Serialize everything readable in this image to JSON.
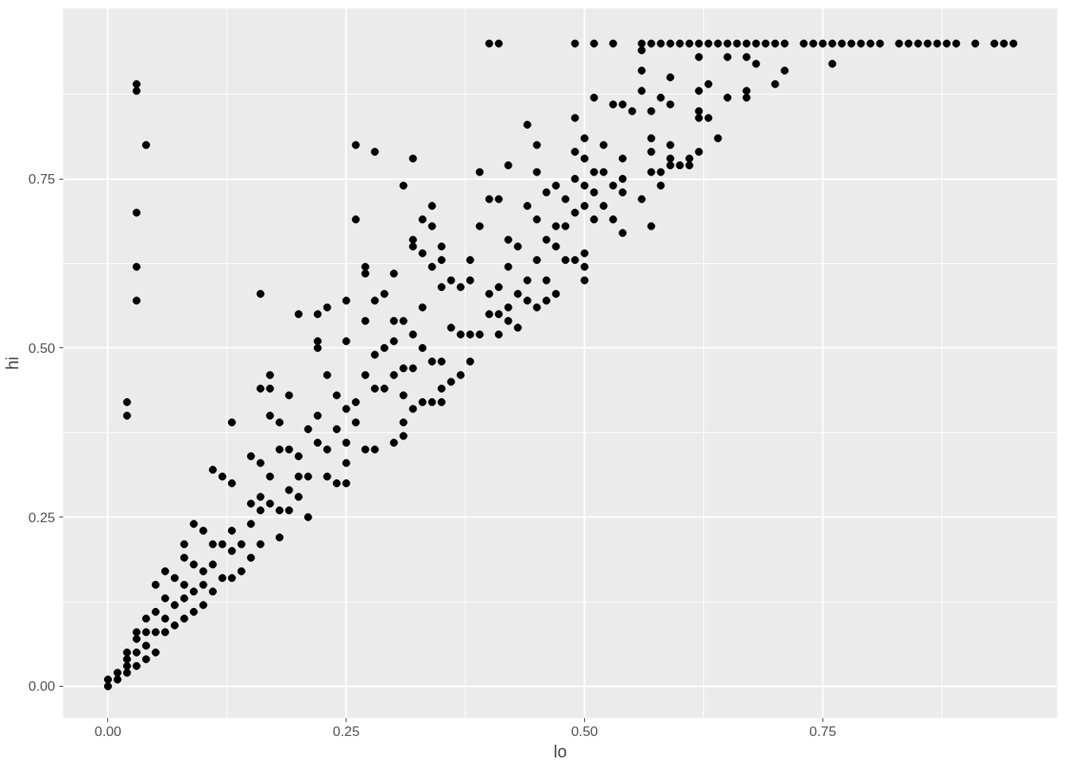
{
  "chart_data": {
    "type": "scatter",
    "xlabel": "lo",
    "ylabel": "hi",
    "xlim": [
      -0.047,
      0.996
    ],
    "ylim": [
      -0.047,
      1.002
    ],
    "xticks": [
      {
        "value": 0,
        "label": "0.00"
      },
      {
        "value": 0.25,
        "label": "0.25"
      },
      {
        "value": 0.5,
        "label": "0.50"
      },
      {
        "value": 0.75,
        "label": "0.75"
      }
    ],
    "yticks": [
      {
        "value": 0,
        "label": "0.00"
      },
      {
        "value": 0.25,
        "label": "0.25"
      },
      {
        "value": 0.5,
        "label": "0.50"
      },
      {
        "value": 0.75,
        "label": "0.75"
      }
    ],
    "grid": true,
    "marker": "circle",
    "series": [
      {
        "color": "#000000",
        "x": [
          0.03,
          0.03,
          0.04,
          0.03,
          0.03,
          0.03,
          0.02,
          0.02,
          0,
          0,
          0.01,
          0.01,
          0.02,
          0.02,
          0.02,
          0.02,
          0.03,
          0.03,
          0.03,
          0.03,
          0.04,
          0.04,
          0.04,
          0.04,
          0.05,
          0.05,
          0.05,
          0.05,
          0.06,
          0.06,
          0.06,
          0.06,
          0.07,
          0.07,
          0.07,
          0.08,
          0.08,
          0.08,
          0.08,
          0.08,
          0.09,
          0.09,
          0.09,
          0.09,
          0.1,
          0.1,
          0.1,
          0.1,
          0.11,
          0.11,
          0.11,
          0.11,
          0.12,
          0.12,
          0.12,
          0.13,
          0.13,
          0.13,
          0.13,
          0.13,
          0.14,
          0.14,
          0.15,
          0.15,
          0.15,
          0.15,
          0.16,
          0.16,
          0.16,
          0.16,
          0.16,
          0.16,
          0.17,
          0.17,
          0.17,
          0.17,
          0.17,
          0.18,
          0.18,
          0.18,
          0.18,
          0.19,
          0.19,
          0.19,
          0.19,
          0.2,
          0.2,
          0.2,
          0.2,
          0.21,
          0.21,
          0.21,
          0.22,
          0.22,
          0.22,
          0.22,
          0.22,
          0.23,
          0.23,
          0.23,
          0.23,
          0.24,
          0.24,
          0.24,
          0.25,
          0.25,
          0.25,
          0.25,
          0.25,
          0.25,
          0.26,
          0.26,
          0.26,
          0.26,
          0.27,
          0.27,
          0.27,
          0.27,
          0.27,
          0.28,
          0.28,
          0.28,
          0.28,
          0.28,
          0.29,
          0.29,
          0.29,
          0.3,
          0.3,
          0.3,
          0.3,
          0.3,
          0.31,
          0.31,
          0.31,
          0.31,
          0.31,
          0.31,
          0.32,
          0.32,
          0.32,
          0.32,
          0.32,
          0.32,
          0.33,
          0.33,
          0.33,
          0.33,
          0.33,
          0.34,
          0.34,
          0.34,
          0.34,
          0.34,
          0.35,
          0.35,
          0.35,
          0.35,
          0.35,
          0.35,
          0.36,
          0.36,
          0.36,
          0.37,
          0.37,
          0.37,
          0.38,
          0.38,
          0.38,
          0.38,
          0.39,
          0.39,
          0.39,
          0.4,
          0.4,
          0.4,
          0.4,
          0.41,
          0.41,
          0.41,
          0.41,
          0.41,
          0.42,
          0.42,
          0.42,
          0.42,
          0.42,
          0.43,
          0.43,
          0.43,
          0.44,
          0.44,
          0.44,
          0.44,
          0.45,
          0.45,
          0.45,
          0.45,
          0.45,
          0.46,
          0.46,
          0.46,
          0.46,
          0.47,
          0.47,
          0.47,
          0.47,
          0.48,
          0.48,
          0.48,
          0.49,
          0.49,
          0.49,
          0.49,
          0.49,
          0.49,
          0.5,
          0.5,
          0.5,
          0.5,
          0.5,
          0.5,
          0.5,
          0.51,
          0.51,
          0.51,
          0.51,
          0.51,
          0.52,
          0.52,
          0.52,
          0.53,
          0.53,
          0.53,
          0.53,
          0.54,
          0.54,
          0.54,
          0.54,
          0.54,
          0.55,
          0.56,
          0.56,
          0.56,
          0.56,
          0.56,
          0.57,
          0.57,
          0.57,
          0.57,
          0.57,
          0.57,
          0.58,
          0.58,
          0.58,
          0.58,
          0.59,
          0.59,
          0.59,
          0.59,
          0.59,
          0.59,
          0.6,
          0.6,
          0.61,
          0.61,
          0.61,
          0.62,
          0.62,
          0.62,
          0.62,
          0.62,
          0.62,
          0.63,
          0.63,
          0.63,
          0.64,
          0.64,
          0.65,
          0.65,
          0.65,
          0.66,
          0.67,
          0.67,
          0.67,
          0.67,
          0.68,
          0.68,
          0.69,
          0.7,
          0.7,
          0.71,
          0.71,
          0.73,
          0.74,
          0.75,
          0.76,
          0.76,
          0.77,
          0.78,
          0.79,
          0.8,
          0.81,
          0.83,
          0.84,
          0.85,
          0.86,
          0.87,
          0.88,
          0.89,
          0.91,
          0.93,
          0.94,
          0.95
        ],
        "values": [
          0.89,
          0.88,
          0.8,
          0.7,
          0.62,
          0.57,
          0.42,
          0.4,
          0,
          0.01,
          0.01,
          0.02,
          0.02,
          0.03,
          0.04,
          0.05,
          0.03,
          0.05,
          0.07,
          0.08,
          0.04,
          0.06,
          0.08,
          0.1,
          0.05,
          0.08,
          0.11,
          0.15,
          0.08,
          0.1,
          0.13,
          0.17,
          0.09,
          0.12,
          0.16,
          0.1,
          0.13,
          0.15,
          0.19,
          0.21,
          0.11,
          0.14,
          0.18,
          0.24,
          0.12,
          0.15,
          0.17,
          0.23,
          0.14,
          0.18,
          0.21,
          0.32,
          0.16,
          0.21,
          0.31,
          0.16,
          0.2,
          0.23,
          0.3,
          0.39,
          0.17,
          0.21,
          0.19,
          0.24,
          0.27,
          0.34,
          0.21,
          0.26,
          0.28,
          0.33,
          0.44,
          0.58,
          0.27,
          0.31,
          0.4,
          0.44,
          0.46,
          0.22,
          0.26,
          0.35,
          0.39,
          0.26,
          0.29,
          0.35,
          0.43,
          0.28,
          0.31,
          0.34,
          0.55,
          0.25,
          0.31,
          0.38,
          0.36,
          0.4,
          0.5,
          0.51,
          0.55,
          0.31,
          0.35,
          0.46,
          0.56,
          0.3,
          0.38,
          0.43,
          0.3,
          0.33,
          0.36,
          0.41,
          0.51,
          0.57,
          0.39,
          0.42,
          0.69,
          0.8,
          0.35,
          0.46,
          0.54,
          0.61,
          0.62,
          0.35,
          0.44,
          0.49,
          0.57,
          0.79,
          0.44,
          0.5,
          0.58,
          0.36,
          0.46,
          0.51,
          0.54,
          0.61,
          0.37,
          0.39,
          0.43,
          0.47,
          0.54,
          0.74,
          0.41,
          0.47,
          0.52,
          0.65,
          0.66,
          0.78,
          0.42,
          0.5,
          0.56,
          0.64,
          0.69,
          0.42,
          0.48,
          0.62,
          0.68,
          0.71,
          0.42,
          0.44,
          0.48,
          0.59,
          0.63,
          0.65,
          0.45,
          0.53,
          0.6,
          0.46,
          0.52,
          0.59,
          0.48,
          0.52,
          0.6,
          0.63,
          0.52,
          0.68,
          0.76,
          0.55,
          0.58,
          0.72,
          0.95,
          0.52,
          0.55,
          0.59,
          0.72,
          0.95,
          0.54,
          0.56,
          0.62,
          0.66,
          0.77,
          0.53,
          0.58,
          0.65,
          0.57,
          0.6,
          0.71,
          0.83,
          0.56,
          0.63,
          0.69,
          0.76,
          0.8,
          0.57,
          0.6,
          0.66,
          0.73,
          0.58,
          0.65,
          0.68,
          0.74,
          0.63,
          0.68,
          0.72,
          0.63,
          0.7,
          0.75,
          0.79,
          0.84,
          0.95,
          0.6,
          0.62,
          0.64,
          0.71,
          0.74,
          0.78,
          0.81,
          0.69,
          0.73,
          0.76,
          0.87,
          0.95,
          0.71,
          0.76,
          0.8,
          0.69,
          0.74,
          0.86,
          0.95,
          0.67,
          0.73,
          0.75,
          0.78,
          0.86,
          0.85,
          0.72,
          0.88,
          0.91,
          0.94,
          0.95,
          0.68,
          0.76,
          0.79,
          0.81,
          0.85,
          0.95,
          0.74,
          0.76,
          0.87,
          0.95,
          0.77,
          0.78,
          0.8,
          0.86,
          0.9,
          0.95,
          0.77,
          0.95,
          0.77,
          0.78,
          0.95,
          0.79,
          0.84,
          0.85,
          0.88,
          0.93,
          0.95,
          0.84,
          0.89,
          0.95,
          0.81,
          0.95,
          0.87,
          0.93,
          0.95,
          0.95,
          0.87,
          0.88,
          0.93,
          0.95,
          0.92,
          0.95,
          0.95,
          0.89,
          0.95,
          0.91,
          0.95,
          0.95,
          0.95,
          0.95,
          0.92,
          0.95,
          0.95,
          0.95,
          0.95,
          0.95,
          0.95,
          0.95,
          0.95,
          0.95,
          0.95,
          0.95,
          0.95,
          0.95,
          0.95,
          0.95,
          0.95,
          0.95
        ]
      }
    ]
  }
}
